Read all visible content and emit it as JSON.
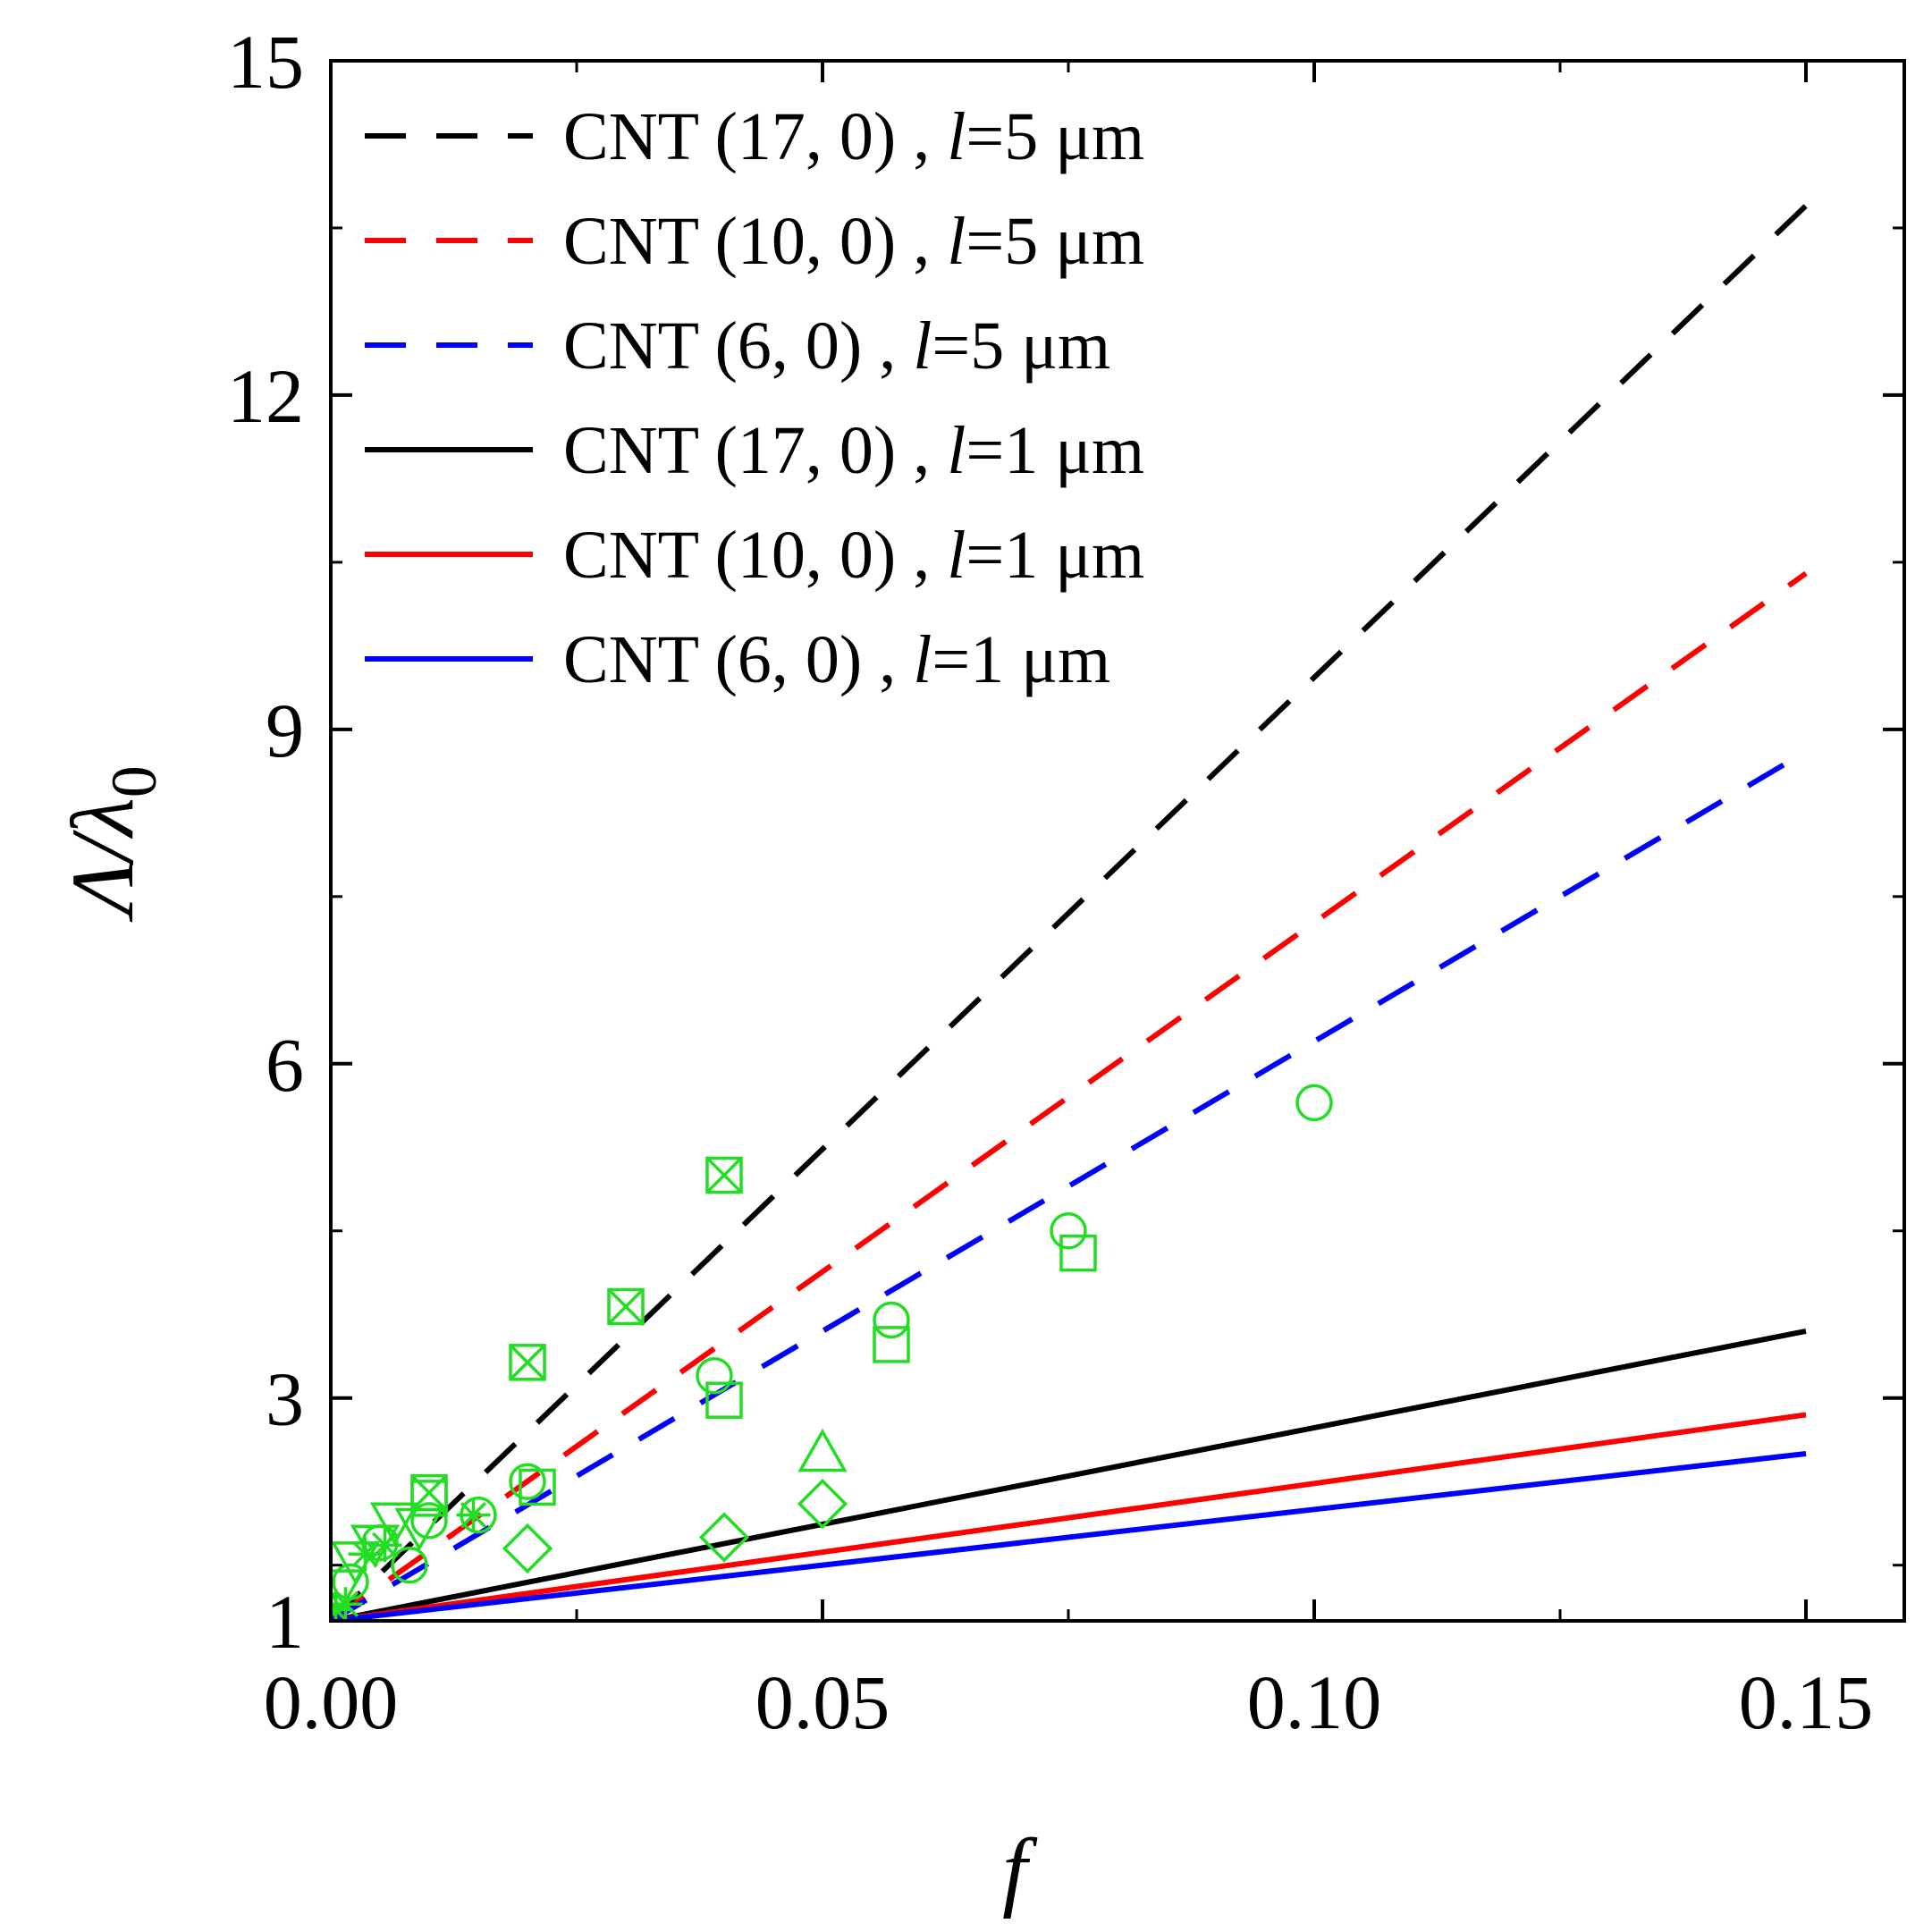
{
  "chart_data": {
    "type": "line",
    "xlabel": "f",
    "ylabel_main": "Λ/λ",
    "ylabel_sub": "0",
    "xlim": [
      0,
      0.16
    ],
    "ylim": [
      1,
      15
    ],
    "x_ticks": [
      {
        "value": 0.0,
        "label": "0.00"
      },
      {
        "value": 0.05,
        "label": "0.05"
      },
      {
        "value": 0.1,
        "label": "0.10"
      },
      {
        "value": 0.15,
        "label": "0.15"
      }
    ],
    "x_minor_ticks": [
      0.025,
      0.075,
      0.125
    ],
    "y_ticks": [
      {
        "value": 1,
        "label": "1"
      },
      {
        "value": 3,
        "label": "3"
      },
      {
        "value": 6,
        "label": "6"
      },
      {
        "value": 9,
        "label": "9"
      },
      {
        "value": 12,
        "label": "12"
      },
      {
        "value": 15,
        "label": "15"
      }
    ],
    "y_minor_ticks": [
      1.5,
      4.5,
      7.5,
      10.5,
      13.5
    ],
    "series": [
      {
        "name": "CNT (17, 0) ,  l=5  μm",
        "name_pre": "CNT (17, 0) ,  ",
        "name_var": "l",
        "name_post": "=5  μm",
        "color": "#000000",
        "dash": "dashed",
        "x": [
          0,
          0.15
        ],
        "y": [
          1,
          13.7
        ]
      },
      {
        "name": "CNT (10, 0) ,  l=5  μm",
        "name_pre": "CNT (10, 0) ,  ",
        "name_var": "l",
        "name_post": "=5  μm",
        "color": "#ff0000",
        "dash": "dashed",
        "x": [
          0,
          0.15
        ],
        "y": [
          1,
          10.4
        ]
      },
      {
        "name": "CNT (6, 0) ,  l=5  μm",
        "name_pre": "CNT (6, 0) ,  ",
        "name_var": "l",
        "name_post": "=5  μm",
        "color": "#0000ff",
        "dash": "dashed",
        "x": [
          0,
          0.15
        ],
        "y": [
          1,
          8.8
        ]
      },
      {
        "name": "CNT (17, 0) ,  l=1  μm",
        "name_pre": "CNT (17, 0) ,  ",
        "name_var": "l",
        "name_post": "=1  μm",
        "color": "#000000",
        "dash": "solid",
        "x": [
          0,
          0.15
        ],
        "y": [
          1,
          3.6
        ]
      },
      {
        "name": "CNT (10, 0) ,  l=1  μm",
        "name_pre": "CNT (10, 0) ,  ",
        "name_var": "l",
        "name_post": "=1  μm",
        "color": "#ff0000",
        "dash": "solid",
        "x": [
          0,
          0.15
        ],
        "y": [
          1,
          2.85
        ]
      },
      {
        "name": "CNT (6, 0) ,  l=1  μm",
        "name_pre": "CNT (6, 0) ,  ",
        "name_var": "l",
        "name_post": "=1  μm",
        "color": "#0000ff",
        "dash": "solid",
        "x": [
          0,
          0.15
        ],
        "y": [
          1,
          2.5
        ]
      }
    ],
    "markers": {
      "color": "#22dd22",
      "points": [
        {
          "shape": "boxx",
          "x": 0.01,
          "y": 2.15
        },
        {
          "shape": "boxx",
          "x": 0.02,
          "y": 3.32
        },
        {
          "shape": "boxx",
          "x": 0.03,
          "y": 3.82
        },
        {
          "shape": "boxx",
          "x": 0.04,
          "y": 5.0
        },
        {
          "shape": "circle",
          "x": 0.002,
          "y": 1.35
        },
        {
          "shape": "circle",
          "x": 0.005,
          "y": 1.7
        },
        {
          "shape": "circle",
          "x": 0.008,
          "y": 1.5
        },
        {
          "shape": "circle",
          "x": 0.01,
          "y": 1.9
        },
        {
          "shape": "circle",
          "x": 0.015,
          "y": 1.95
        },
        {
          "shape": "circle",
          "x": 0.02,
          "y": 2.25
        },
        {
          "shape": "circle",
          "x": 0.039,
          "y": 3.2
        },
        {
          "shape": "circle",
          "x": 0.057,
          "y": 3.7
        },
        {
          "shape": "circle",
          "x": 0.075,
          "y": 4.5
        },
        {
          "shape": "circle",
          "x": 0.1,
          "y": 5.65
        },
        {
          "shape": "square",
          "x": 0.01,
          "y": 2.1
        },
        {
          "shape": "square",
          "x": 0.021,
          "y": 2.2
        },
        {
          "shape": "square",
          "x": 0.04,
          "y": 2.98
        },
        {
          "shape": "square",
          "x": 0.057,
          "y": 3.48
        },
        {
          "shape": "square",
          "x": 0.076,
          "y": 4.3
        },
        {
          "shape": "diamond",
          "x": 0.02,
          "y": 1.65
        },
        {
          "shape": "diamond",
          "x": 0.04,
          "y": 1.75
        },
        {
          "shape": "diamond",
          "x": 0.05,
          "y": 2.05
        },
        {
          "shape": "triangle",
          "x": 0.05,
          "y": 2.5
        },
        {
          "shape": "triangle-down",
          "x": 0.001,
          "y": 1.3
        },
        {
          "shape": "triangle-down",
          "x": 0.0025,
          "y": 1.55
        },
        {
          "shape": "triangle-down",
          "x": 0.0045,
          "y": 1.7
        },
        {
          "shape": "triangle-down",
          "x": 0.0065,
          "y": 1.9
        },
        {
          "shape": "triangle-down",
          "x": 0.009,
          "y": 1.85
        },
        {
          "shape": "star",
          "x": 0.0005,
          "y": 1.1
        },
        {
          "shape": "star",
          "x": 0.0015,
          "y": 1.15
        },
        {
          "shape": "star",
          "x": 0.0035,
          "y": 1.6
        },
        {
          "shape": "star",
          "x": 0.0055,
          "y": 1.68
        },
        {
          "shape": "star",
          "x": 0.0145,
          "y": 1.95
        }
      ]
    }
  }
}
